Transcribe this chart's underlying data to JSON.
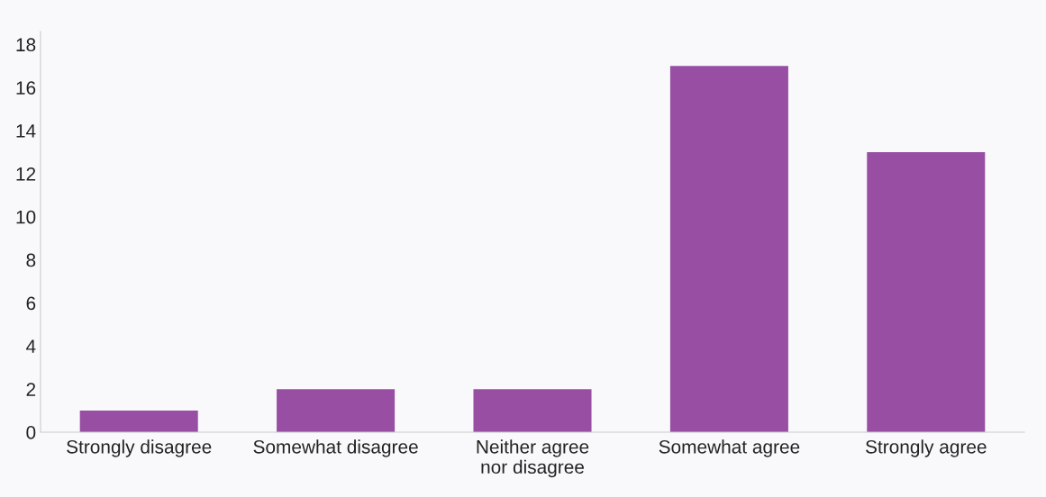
{
  "chart_data": {
    "type": "bar",
    "categories": [
      "Strongly disagree",
      "Somewhat disagree",
      "Neither agree\nnor disagree",
      "Somewhat agree",
      "Strongly agree"
    ],
    "values": [
      1,
      2,
      2,
      17,
      13
    ],
    "color": "#984ea3",
    "ylim": [
      0,
      18.6
    ],
    "yticks": [
      0,
      2,
      4,
      6,
      8,
      10,
      12,
      14,
      16,
      18
    ],
    "grid": false,
    "legend": false
  }
}
